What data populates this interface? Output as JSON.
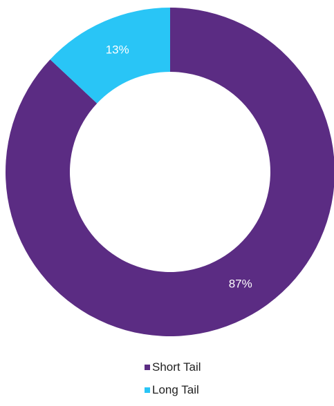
{
  "chart_data": {
    "type": "pie",
    "variant": "donut",
    "title": "",
    "slices": [
      {
        "name": "Short Tail",
        "value": 87,
        "label": "87%",
        "color": "#5b2c83"
      },
      {
        "name": "Long Tail",
        "value": 13,
        "label": "13%",
        "color": "#29c5f6"
      }
    ],
    "start_angle_deg": 0,
    "direction": "clockwise",
    "legend": {
      "position": "bottom",
      "items": [
        {
          "label": "Short Tail",
          "color": "#5b2c83"
        },
        {
          "label": "Long Tail",
          "color": "#29c5f6"
        }
      ]
    }
  }
}
